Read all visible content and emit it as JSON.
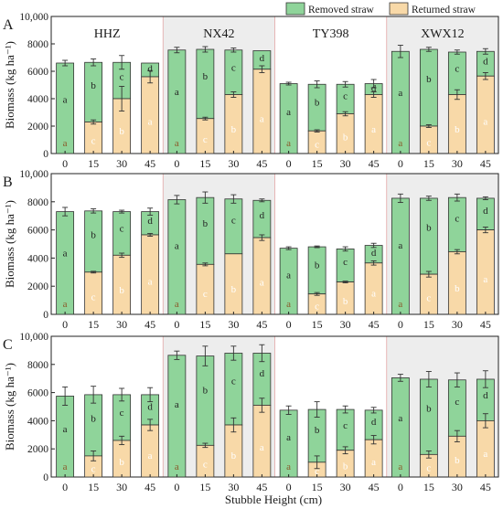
{
  "figure": {
    "legend": {
      "removed": "Removed straw",
      "returned": "Returned straw",
      "placement": "top-right"
    },
    "y_axis_label": "Biomass (kg ha⁻¹)",
    "x_axis_label": "Stubble Height (cm)",
    "panel_letters": [
      "A",
      "B",
      "C"
    ]
  },
  "colors": {
    "removed": "#8fd49a",
    "returned": "#f8d9a8",
    "edge": "#333333",
    "group_shade": "#ededed",
    "group_border": "#e3a7a7",
    "letter_removed": "#222222",
    "letter_returned": "#ffffff",
    "letter_returned_dark": "#8a5a2a"
  },
  "chart_data": [
    {
      "type": "bar",
      "stacked": true,
      "panel": "A",
      "groups": [
        "HHZ",
        "NX42",
        "TY398",
        "XWX12"
      ],
      "shaded_groups": [
        false,
        true,
        false,
        true
      ],
      "categories": [
        "0",
        "15",
        "30",
        "45"
      ],
      "ylim": [
        0,
        10000
      ],
      "yticks": [
        "0",
        "2000",
        "4000",
        "6000",
        "8000",
        "10,000"
      ],
      "series": [
        {
          "name": "Returned straw",
          "values": [
            [
              0,
              2300,
              4000,
              5600
            ],
            [
              0,
              2550,
              4300,
              6150
            ],
            [
              0,
              1650,
              2900,
              4300
            ],
            [
              0,
              2000,
              4300,
              5650
            ]
          ],
          "errors": [
            [
              0,
              150,
              900,
              450
            ],
            [
              0,
              100,
              200,
              250
            ],
            [
              0,
              80,
              150,
              200
            ],
            [
              0,
              100,
              350,
              250
            ]
          ],
          "letters": [
            [
              "a",
              "c",
              "b",
              "a"
            ],
            [
              "a",
              "c",
              "b",
              "a"
            ],
            [
              "a",
              "c",
              "b",
              "a"
            ],
            [
              "a",
              "c",
              "b",
              "a"
            ]
          ]
        },
        {
          "name": "Removed straw",
          "totals": [
            [
              6600,
              6650,
              6650,
              6600
            ],
            [
              7550,
              7600,
              7550,
              7500
            ],
            [
              5100,
              5050,
              5050,
              5100
            ],
            [
              7450,
              7600,
              7400,
              7450
            ]
          ],
          "errors": [
            [
              200,
              250,
              500,
              0
            ],
            [
              200,
              200,
              150,
              0
            ],
            [
              100,
              250,
              200,
              300
            ],
            [
              450,
              150,
              150,
              200
            ]
          ],
          "letters": [
            [
              "a",
              "b",
              "c",
              "d"
            ],
            [
              "a",
              "b",
              "c",
              "d"
            ],
            [
              "a",
              "b",
              "c",
              "d"
            ],
            [
              "a",
              "b",
              "c",
              "d"
            ]
          ]
        }
      ]
    },
    {
      "type": "bar",
      "stacked": true,
      "panel": "B",
      "groups": [
        "HHZ",
        "NX42",
        "TY398",
        "XWX12"
      ],
      "shaded_groups": [
        false,
        true,
        false,
        true
      ],
      "categories": [
        "0",
        "15",
        "30",
        "45"
      ],
      "ylim": [
        0,
        10000
      ],
      "yticks": [
        "0",
        "2000",
        "4000",
        "6000",
        "8000",
        "10,000"
      ],
      "series": [
        {
          "name": "Returned straw",
          "values": [
            [
              0,
              3000,
              4200,
              5650
            ],
            [
              0,
              3550,
              4300,
              5450
            ],
            [
              0,
              1450,
              2300,
              3650
            ],
            [
              0,
              2850,
              4450,
              6000
            ]
          ],
          "errors": [
            [
              0,
              60,
              150,
              100
            ],
            [
              0,
              100,
              0,
              200
            ],
            [
              0,
              100,
              60,
              150
            ],
            [
              0,
              200,
              150,
              200
            ]
          ],
          "letters": [
            [
              "a",
              "c",
              "b",
              "a"
            ],
            [
              "a",
              "c",
              "b",
              "a"
            ],
            [
              "a",
              "c",
              "b",
              "a"
            ],
            [
              "a",
              "c",
              "b",
              "a"
            ]
          ]
        },
        {
          "name": "Removed straw",
          "totals": [
            [
              7300,
              7350,
              7300,
              7300
            ],
            [
              8150,
              8300,
              8200,
              8100
            ],
            [
              4700,
              4800,
              4650,
              4900
            ],
            [
              8250,
              8250,
              8300,
              8250
            ]
          ],
          "errors": [
            [
              300,
              150,
              100,
              250
            ],
            [
              300,
              400,
              300,
              100
            ],
            [
              100,
              60,
              150,
              150
            ],
            [
              300,
              150,
              250,
              100
            ]
          ],
          "letters": [
            [
              "a",
              "b",
              "c",
              "d"
            ],
            [
              "a",
              "b",
              "c",
              "d"
            ],
            [
              "a",
              "b",
              "c",
              "d"
            ],
            [
              "a",
              "b",
              "c",
              "d"
            ]
          ]
        }
      ]
    },
    {
      "type": "bar",
      "stacked": true,
      "panel": "C",
      "groups": [
        "HHZ",
        "NX42",
        "TY398",
        "XWX12"
      ],
      "shaded_groups": [
        false,
        true,
        false,
        true
      ],
      "categories": [
        "0",
        "15",
        "30",
        "45"
      ],
      "ylim": [
        0,
        10000
      ],
      "yticks": [
        "0",
        "2000",
        "4000",
        "6000",
        "8000",
        "10,000"
      ],
      "series": [
        {
          "name": "Returned straw",
          "values": [
            [
              0,
              1500,
              2600,
              3700
            ],
            [
              0,
              2250,
              3700,
              5100
            ],
            [
              0,
              1050,
              1900,
              2650
            ],
            [
              0,
              1600,
              2900,
              4000
            ]
          ],
          "errors": [
            [
              0,
              350,
              300,
              400
            ],
            [
              0,
              150,
              500,
              500
            ],
            [
              0,
              450,
              250,
              300
            ],
            [
              0,
              250,
              400,
              500
            ]
          ],
          "letters": [
            [
              "a",
              "c",
              "b",
              "a"
            ],
            [
              "a",
              "c",
              "b",
              "a"
            ],
            [
              "a",
              "c",
              "b",
              "a"
            ],
            [
              "a",
              "c",
              "b",
              "a"
            ]
          ]
        },
        {
          "name": "Removed straw",
          "totals": [
            [
              5750,
              5850,
              5850,
              5850
            ],
            [
              8650,
              8600,
              8800,
              8800
            ],
            [
              4750,
              4800,
              4800,
              4750
            ],
            [
              7050,
              6950,
              6900,
              6950
            ]
          ],
          "errors": [
            [
              650,
              600,
              450,
              500
            ],
            [
              300,
              700,
              500,
              600
            ],
            [
              300,
              550,
              250,
              200
            ],
            [
              250,
              550,
              500,
              600
            ]
          ],
          "letters": [
            [
              "a",
              "b",
              "c",
              "d"
            ],
            [
              "a",
              "b",
              "c",
              "d"
            ],
            [
              "a",
              "b",
              "c",
              "d"
            ],
            [
              "a",
              "b",
              "c",
              "d"
            ]
          ]
        }
      ]
    }
  ]
}
